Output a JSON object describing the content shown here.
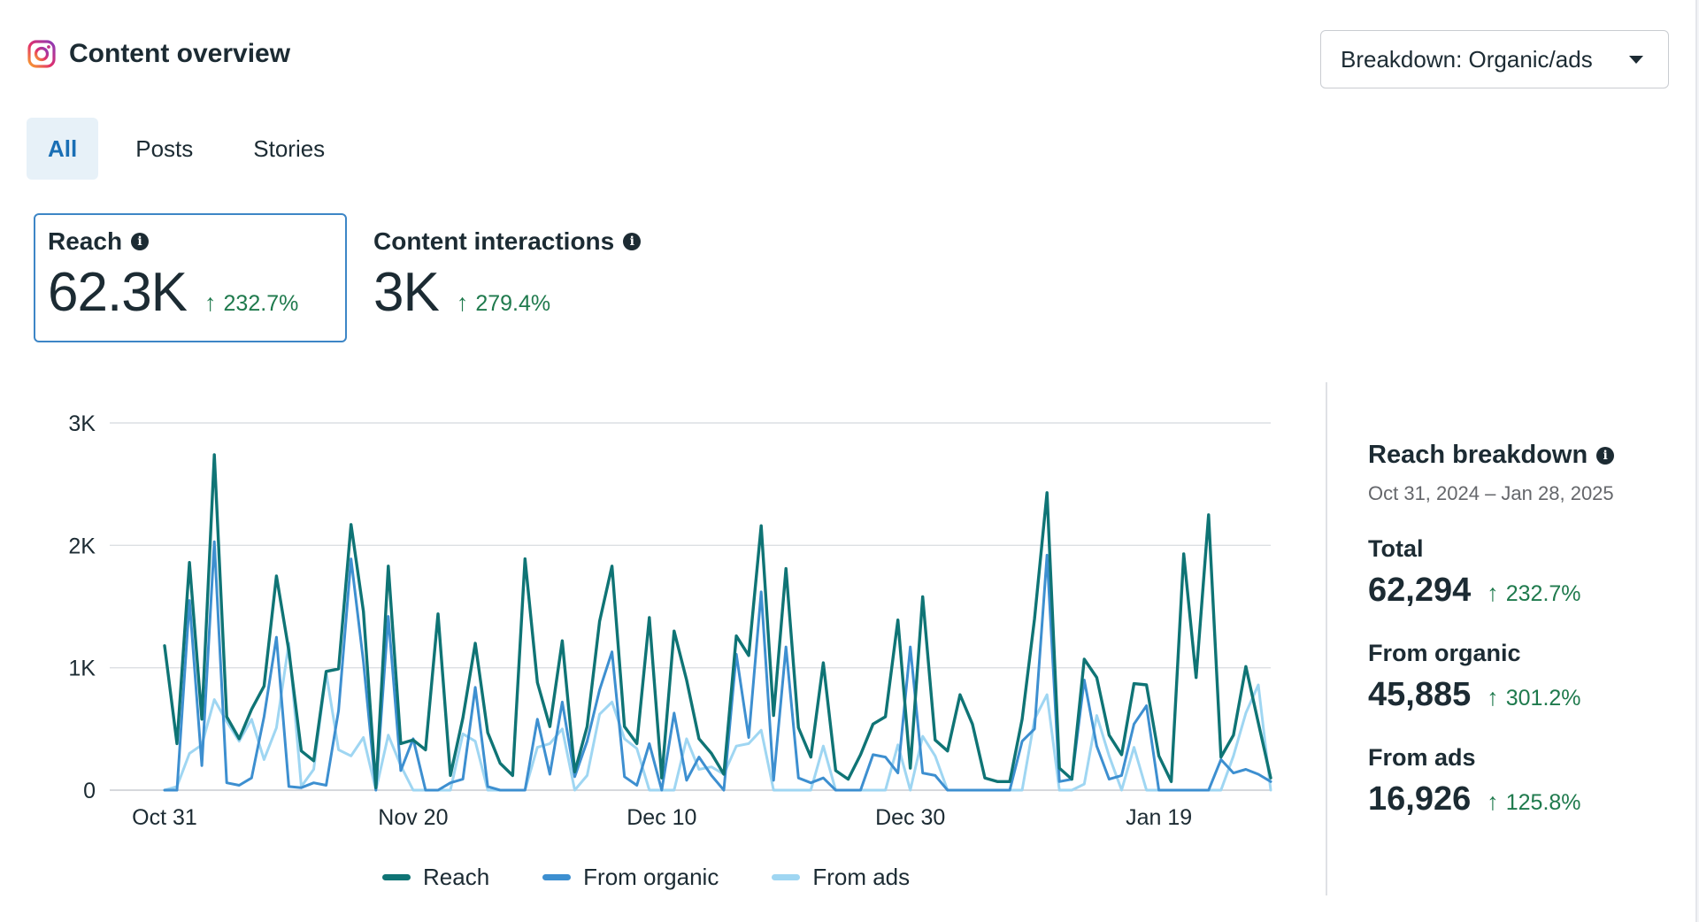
{
  "header": {
    "title": "Content overview",
    "breakdown_label": "Breakdown: Organic/ads"
  },
  "tabs": [
    {
      "label": "All",
      "active": true
    },
    {
      "label": "Posts"
    },
    {
      "label": "Stories"
    }
  ],
  "metrics": [
    {
      "label": "Reach",
      "value": "62.3K",
      "delta": "232.7%",
      "selected": true
    },
    {
      "label": "Content interactions",
      "value": "3K",
      "delta": "279.4%"
    }
  ],
  "breakdown": {
    "title": "Reach breakdown",
    "range": "Oct 31, 2024 – Jan 28, 2025",
    "stats": [
      {
        "label": "Total",
        "value": "62,294",
        "delta": "232.7%"
      },
      {
        "label": "From organic",
        "value": "45,885",
        "delta": "301.2%"
      },
      {
        "label": "From ads",
        "value": "16,926",
        "delta": "125.8%"
      }
    ]
  },
  "colors": {
    "reach": "#0f7475",
    "organic": "#3d8fd0",
    "ads": "#9fd6f2",
    "up": "#1f7a4d"
  },
  "chart_data": {
    "type": "line",
    "x_start": "Oct 31",
    "categories": [
      "Oct 31",
      "Nov 1",
      "Nov 2",
      "Nov 3",
      "Nov 4",
      "Nov 5",
      "Nov 6",
      "Nov 7",
      "Nov 8",
      "Nov 9",
      "Nov 10",
      "Nov 11",
      "Nov 12",
      "Nov 13",
      "Nov 14",
      "Nov 15",
      "Nov 16",
      "Nov 17",
      "Nov 18",
      "Nov 19",
      "Nov 20",
      "Nov 21",
      "Nov 22",
      "Nov 23",
      "Nov 24",
      "Nov 25",
      "Nov 26",
      "Nov 27",
      "Nov 28",
      "Nov 29",
      "Nov 30",
      "Dec 1",
      "Dec 2",
      "Dec 3",
      "Dec 4",
      "Dec 5",
      "Dec 6",
      "Dec 7",
      "Dec 8",
      "Dec 9",
      "Dec 10",
      "Dec 11",
      "Dec 12",
      "Dec 13",
      "Dec 14",
      "Dec 15",
      "Dec 16",
      "Dec 17",
      "Dec 18",
      "Dec 19",
      "Dec 20",
      "Dec 21",
      "Dec 22",
      "Dec 23",
      "Dec 24",
      "Dec 25",
      "Dec 26",
      "Dec 27",
      "Dec 28",
      "Dec 29",
      "Dec 30",
      "Dec 31",
      "Jan 1",
      "Jan 2",
      "Jan 3",
      "Jan 4",
      "Jan 5",
      "Jan 6",
      "Jan 7",
      "Jan 8",
      "Jan 9",
      "Jan 10",
      "Jan 11",
      "Jan 12",
      "Jan 13",
      "Jan 14",
      "Jan 15",
      "Jan 16",
      "Jan 17",
      "Jan 18",
      "Jan 19",
      "Jan 20",
      "Jan 21",
      "Jan 22",
      "Jan 23",
      "Jan 24",
      "Jan 25",
      "Jan 26",
      "Jan 27",
      "Jan 28"
    ],
    "x_ticks": [
      "Oct 31",
      "Nov 20",
      "Dec 10",
      "Dec 30",
      "Jan 19"
    ],
    "y_ticks": [
      0,
      1000,
      2000,
      3000
    ],
    "y_tick_labels": [
      "0",
      "1K",
      "2K",
      "3K"
    ],
    "ylim": [
      0,
      3000
    ],
    "grid": true,
    "legend": "bottom",
    "series": [
      {
        "name": "Reach",
        "color": "#0f7475",
        "values": [
          1180,
          380,
          1860,
          580,
          2740,
          600,
          420,
          660,
          850,
          1750,
          1140,
          320,
          240,
          970,
          990,
          2170,
          1460,
          20,
          1830,
          380,
          410,
          330,
          1440,
          120,
          590,
          1200,
          470,
          220,
          120,
          1890,
          880,
          520,
          1220,
          150,
          520,
          1380,
          1830,
          520,
          380,
          1410,
          100,
          1300,
          900,
          420,
          300,
          130,
          1260,
          1100,
          2160,
          610,
          1810,
          510,
          270,
          1040,
          160,
          90,
          290,
          540,
          600,
          1390,
          180,
          1580,
          410,
          320,
          780,
          540,
          100,
          70,
          70,
          580,
          1400,
          2430,
          180,
          90,
          1070,
          920,
          450,
          290,
          870,
          860,
          280,
          70,
          1930,
          920,
          2250,
          270,
          450,
          1010,
          550,
          100
        ]
      },
      {
        "name": "From organic",
        "color": "#3d8fd0",
        "values": [
          0,
          0,
          1550,
          200,
          2030,
          60,
          40,
          100,
          600,
          1250,
          30,
          20,
          60,
          40,
          650,
          1890,
          1050,
          0,
          1420,
          160,
          420,
          0,
          0,
          60,
          90,
          840,
          30,
          0,
          0,
          0,
          580,
          130,
          720,
          110,
          400,
          820,
          1130,
          110,
          40,
          380,
          0,
          630,
          80,
          270,
          120,
          0,
          1110,
          430,
          1620,
          80,
          1170,
          100,
          60,
          100,
          0,
          0,
          0,
          290,
          270,
          140,
          1170,
          140,
          120,
          0,
          0,
          0,
          0,
          0,
          0,
          400,
          500,
          1920,
          70,
          90,
          900,
          360,
          90,
          120,
          540,
          690,
          0,
          0,
          0,
          0,
          0,
          250,
          140,
          170,
          130,
          70
        ]
      },
      {
        "name": "From ads",
        "color": "#9fd6f2",
        "values": [
          0,
          30,
          300,
          370,
          740,
          560,
          400,
          580,
          250,
          510,
          1200,
          30,
          170,
          960,
          330,
          280,
          430,
          0,
          450,
          200,
          0,
          0,
          0,
          0,
          460,
          400,
          0,
          0,
          0,
          0,
          350,
          380,
          500,
          0,
          120,
          620,
          720,
          420,
          340,
          0,
          0,
          0,
          420,
          170,
          190,
          130,
          360,
          380,
          490,
          0,
          0,
          0,
          0,
          360,
          0,
          0,
          0,
          0,
          0,
          370,
          0,
          440,
          280,
          0,
          0,
          0,
          0,
          0,
          0,
          0,
          580,
          780,
          0,
          0,
          50,
          610,
          280,
          0,
          350,
          0,
          0,
          0,
          0,
          0,
          0,
          0,
          280,
          630,
          860,
          0
        ]
      }
    ]
  }
}
